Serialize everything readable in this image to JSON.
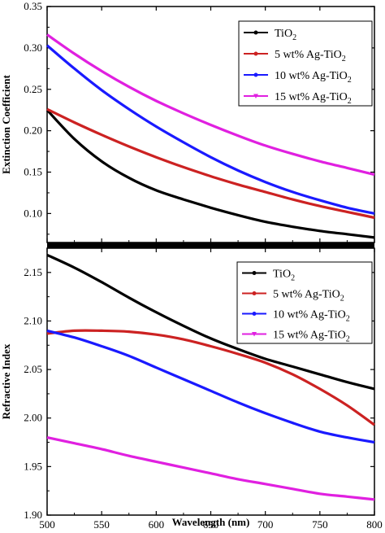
{
  "chart_data": [
    {
      "type": "line",
      "ylabel": "Extinction Coefficient",
      "xlim": [
        500,
        800
      ],
      "ylim": [
        0.065,
        0.35
      ],
      "yticks": [
        "0.10",
        "0.15",
        "0.20",
        "0.25",
        "0.30",
        "0.35"
      ],
      "legend_position": "top-right",
      "series": [
        {
          "name": "TiO2",
          "legend_base": "TiO",
          "legend_sub": "2",
          "color": "#000000",
          "x": [
            500,
            525,
            550,
            575,
            600,
            625,
            650,
            675,
            700,
            725,
            750,
            775,
            800
          ],
          "y": [
            0.225,
            0.19,
            0.163,
            0.143,
            0.128,
            0.117,
            0.107,
            0.098,
            0.09,
            0.084,
            0.079,
            0.075,
            0.071
          ]
        },
        {
          "name": "5 wt% Ag-TiO2",
          "legend_base": "5 wt% Ag-TiO",
          "legend_sub": "2",
          "color": "#cc2222",
          "x": [
            500,
            525,
            550,
            575,
            600,
            625,
            650,
            675,
            700,
            725,
            750,
            775,
            800
          ],
          "y": [
            0.226,
            0.21,
            0.195,
            0.181,
            0.168,
            0.156,
            0.145,
            0.135,
            0.126,
            0.117,
            0.109,
            0.102,
            0.095
          ]
        },
        {
          "name": "10 wt% Ag-TiO2",
          "legend_base": "10 wt% Ag-TiO",
          "legend_sub": "2",
          "color": "#1a1aff",
          "x": [
            500,
            525,
            550,
            575,
            600,
            625,
            650,
            675,
            700,
            725,
            750,
            775,
            800
          ],
          "y": [
            0.303,
            0.275,
            0.249,
            0.226,
            0.205,
            0.186,
            0.168,
            0.152,
            0.138,
            0.126,
            0.116,
            0.107,
            0.1
          ]
        },
        {
          "name": "15 wt% Ag-TiO2",
          "legend_base": "15 wt% Ag-TiO",
          "legend_sub": "2",
          "color": "#e020e0",
          "x": [
            500,
            525,
            550,
            575,
            600,
            625,
            650,
            675,
            700,
            725,
            750,
            775,
            800
          ],
          "y": [
            0.316,
            0.293,
            0.272,
            0.253,
            0.236,
            0.221,
            0.207,
            0.194,
            0.182,
            0.172,
            0.163,
            0.155,
            0.147
          ]
        }
      ]
    },
    {
      "type": "line",
      "xlabel": "Wavelength (nm)",
      "ylabel": "Refractive Index",
      "xlim": [
        500,
        800
      ],
      "ylim": [
        1.9,
        2.175
      ],
      "xticks": [
        "500",
        "550",
        "600",
        "650",
        "700",
        "750",
        "800"
      ],
      "yticks": [
        "1.90",
        "1.95",
        "2.00",
        "2.05",
        "2.10",
        "2.15"
      ],
      "legend_position": "top-right",
      "series": [
        {
          "name": "TiO2",
          "legend_base": "TiO",
          "legend_sub": "2",
          "color": "#000000",
          "x": [
            500,
            525,
            550,
            575,
            600,
            625,
            650,
            675,
            700,
            725,
            750,
            775,
            800
          ],
          "y": [
            2.168,
            2.155,
            2.14,
            2.124,
            2.109,
            2.095,
            2.082,
            2.071,
            2.061,
            2.053,
            2.045,
            2.037,
            2.03
          ]
        },
        {
          "name": "5 wt% Ag-TiO2",
          "legend_base": "5 wt% Ag-TiO",
          "legend_sub": "2",
          "color": "#cc2222",
          "x": [
            500,
            525,
            550,
            575,
            600,
            625,
            650,
            675,
            700,
            725,
            750,
            775,
            800
          ],
          "y": [
            2.087,
            2.09,
            2.09,
            2.089,
            2.086,
            2.081,
            2.074,
            2.066,
            2.057,
            2.045,
            2.03,
            2.013,
            1.993
          ]
        },
        {
          "name": "10 wt% Ag-TiO2",
          "legend_base": "10 wt% Ag-TiO",
          "legend_sub": "2",
          "color": "#1a1aff",
          "x": [
            500,
            525,
            550,
            575,
            600,
            625,
            650,
            675,
            700,
            725,
            750,
            775,
            800
          ],
          "y": [
            2.09,
            2.083,
            2.074,
            2.064,
            2.052,
            2.04,
            2.028,
            2.016,
            2.005,
            1.995,
            1.986,
            1.98,
            1.975
          ]
        },
        {
          "name": "15 wt% Ag-TiO2",
          "legend_base": "15 wt% Ag-TiO",
          "legend_sub": "2",
          "color": "#e020e0",
          "x": [
            500,
            525,
            550,
            575,
            600,
            625,
            650,
            675,
            700,
            725,
            750,
            775,
            800
          ],
          "y": [
            1.98,
            1.974,
            1.968,
            1.961,
            1.955,
            1.949,
            1.943,
            1.937,
            1.932,
            1.927,
            1.922,
            1.919,
            1.916
          ]
        }
      ]
    }
  ]
}
